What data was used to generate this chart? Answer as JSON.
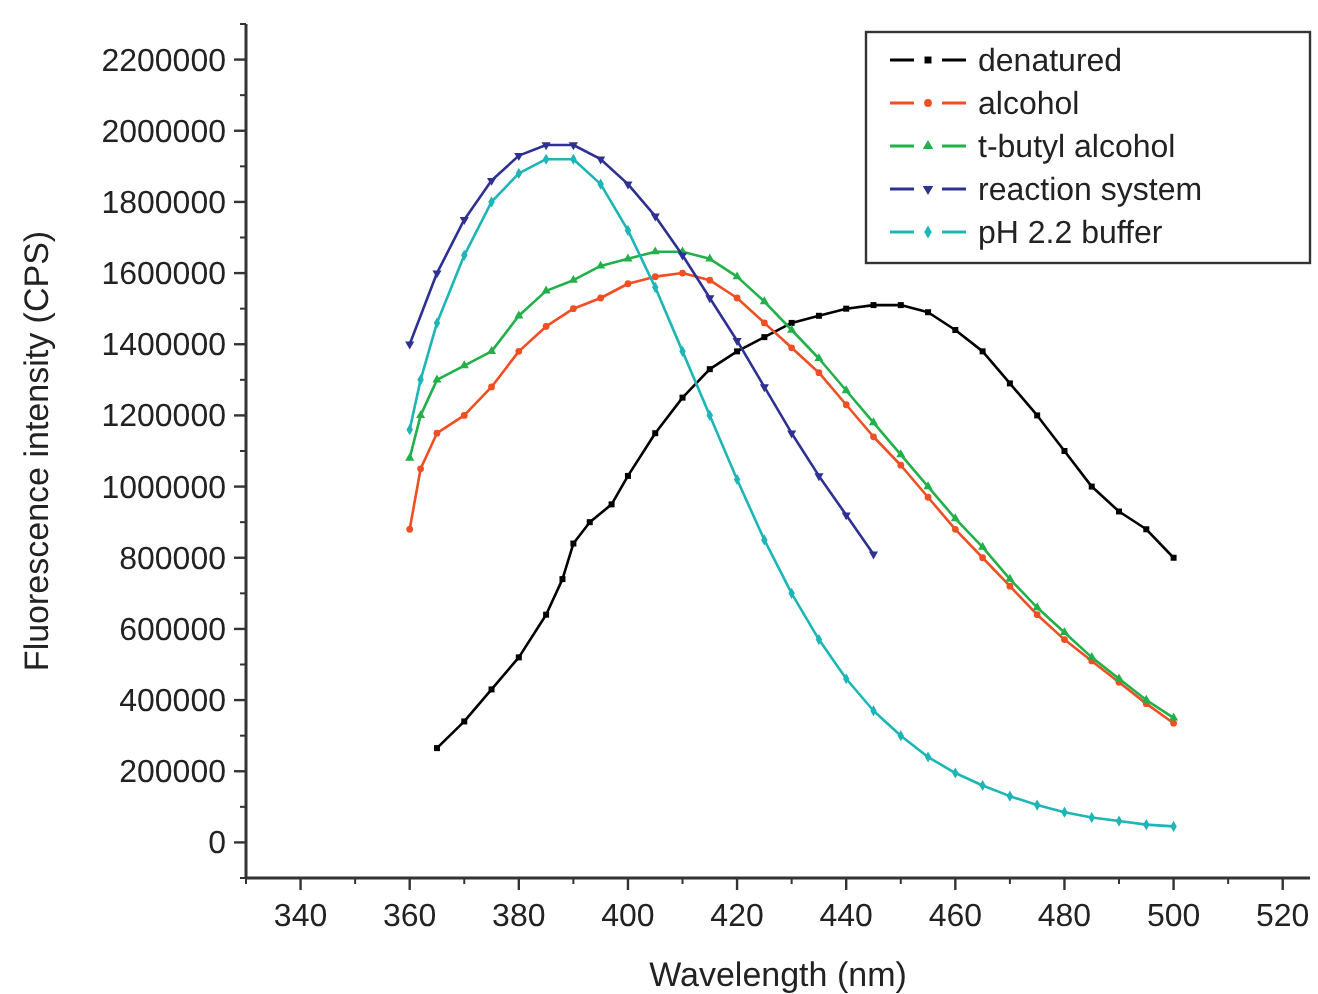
{
  "chart_data": {
    "type": "line",
    "xlabel": "Wavelength (nm)",
    "ylabel": "Fluorescence intensity (CPS)",
    "xlim": [
      330,
      525
    ],
    "xticks": [
      340,
      360,
      380,
      400,
      420,
      440,
      460,
      480,
      500,
      520
    ],
    "ylim": [
      -100000,
      2300000
    ],
    "yticks": [
      0,
      200000,
      400000,
      600000,
      800000,
      1000000,
      1200000,
      1400000,
      1600000,
      1800000,
      2000000,
      2200000
    ],
    "grid": false,
    "legend": "top right",
    "line_style": "solid",
    "series": [
      {
        "name": "denatured",
        "color": "#000000",
        "marker": "square",
        "x": [
          365,
          370,
          375,
          380,
          385,
          388,
          390,
          393,
          397,
          400,
          405,
          410,
          415,
          420,
          425,
          430,
          435,
          440,
          445,
          450,
          455,
          460,
          465,
          470,
          475,
          480,
          485,
          490,
          495,
          500
        ],
        "values": [
          265000,
          340000,
          430000,
          520000,
          640000,
          740000,
          840000,
          900000,
          950000,
          1030000,
          1150000,
          1250000,
          1330000,
          1380000,
          1420000,
          1460000,
          1480000,
          1500000,
          1510000,
          1510000,
          1490000,
          1440000,
          1380000,
          1290000,
          1200000,
          1100000,
          1000000,
          930000,
          880000,
          800000
        ]
      },
      {
        "name": "alcohol",
        "color": "#f04e23",
        "marker": "circle",
        "x": [
          360,
          362,
          365,
          370,
          375,
          380,
          385,
          390,
          395,
          400,
          405,
          410,
          415,
          420,
          425,
          430,
          435,
          440,
          445,
          450,
          455,
          460,
          465,
          470,
          475,
          480,
          485,
          490,
          495,
          500
        ],
        "values": [
          880000,
          1050000,
          1150000,
          1200000,
          1280000,
          1380000,
          1450000,
          1500000,
          1530000,
          1570000,
          1590000,
          1600000,
          1580000,
          1530000,
          1460000,
          1390000,
          1320000,
          1230000,
          1140000,
          1060000,
          970000,
          880000,
          800000,
          720000,
          640000,
          570000,
          510000,
          450000,
          390000,
          335000
        ]
      },
      {
        "name": "t-butyl alcohol",
        "color": "#22b04b",
        "marker": "triangle",
        "x": [
          360,
          362,
          365,
          370,
          375,
          380,
          385,
          390,
          395,
          400,
          405,
          410,
          415,
          420,
          425,
          430,
          435,
          440,
          445,
          450,
          455,
          460,
          465,
          470,
          475,
          480,
          485,
          490,
          495,
          500
        ],
        "values": [
          1080000,
          1200000,
          1300000,
          1340000,
          1380000,
          1480000,
          1550000,
          1580000,
          1620000,
          1640000,
          1660000,
          1660000,
          1640000,
          1590000,
          1520000,
          1440000,
          1360000,
          1270000,
          1180000,
          1090000,
          1000000,
          910000,
          830000,
          740000,
          660000,
          590000,
          520000,
          460000,
          400000,
          350000
        ]
      },
      {
        "name": "reaction system",
        "color": "#2e3192",
        "marker": "triangle-down",
        "x": [
          360,
          365,
          370,
          375,
          380,
          385,
          390,
          395,
          400,
          405,
          410,
          415,
          420,
          425,
          430,
          435,
          440,
          445
        ],
        "values": [
          1400000,
          1600000,
          1750000,
          1860000,
          1930000,
          1960000,
          1960000,
          1920000,
          1850000,
          1760000,
          1650000,
          1530000,
          1410000,
          1280000,
          1150000,
          1030000,
          920000,
          810000
        ]
      },
      {
        "name": "pH 2.2 buffer",
        "color": "#1db5b5",
        "marker": "diamond",
        "x": [
          360,
          362,
          365,
          370,
          375,
          380,
          385,
          390,
          395,
          400,
          405,
          410,
          415,
          420,
          425,
          430,
          435,
          440,
          445,
          450,
          455,
          460,
          465,
          470,
          475,
          480,
          485,
          490,
          495,
          500
        ],
        "values": [
          1160000,
          1300000,
          1460000,
          1650000,
          1800000,
          1880000,
          1920000,
          1920000,
          1850000,
          1720000,
          1560000,
          1380000,
          1200000,
          1020000,
          850000,
          700000,
          570000,
          460000,
          370000,
          300000,
          240000,
          195000,
          160000,
          130000,
          105000,
          85000,
          70000,
          60000,
          50000,
          45000
        ]
      }
    ]
  }
}
